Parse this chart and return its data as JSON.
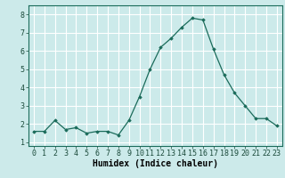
{
  "x": [
    0,
    1,
    2,
    3,
    4,
    5,
    6,
    7,
    8,
    9,
    10,
    11,
    12,
    13,
    14,
    15,
    16,
    17,
    18,
    19,
    20,
    21,
    22,
    23
  ],
  "y": [
    1.6,
    1.6,
    2.2,
    1.7,
    1.8,
    1.5,
    1.6,
    1.6,
    1.4,
    2.2,
    3.5,
    5.0,
    6.2,
    6.7,
    7.3,
    7.8,
    7.7,
    6.1,
    4.7,
    3.7,
    3.0,
    2.3,
    2.3,
    1.9
  ],
  "line_color": "#1a6b5a",
  "marker": "D",
  "marker_size": 1.8,
  "bg_color": "#cceaea",
  "grid_color": "#ffffff",
  "xlabel": "Humidex (Indice chaleur)",
  "xlabel_fontsize": 7,
  "tick_fontsize": 6,
  "xlim": [
    -0.5,
    23.5
  ],
  "ylim": [
    0.8,
    8.5
  ],
  "yticks": [
    1,
    2,
    3,
    4,
    5,
    6,
    7,
    8
  ],
  "xticks": [
    0,
    1,
    2,
    3,
    4,
    5,
    6,
    7,
    8,
    9,
    10,
    11,
    12,
    13,
    14,
    15,
    16,
    17,
    18,
    19,
    20,
    21,
    22,
    23
  ]
}
